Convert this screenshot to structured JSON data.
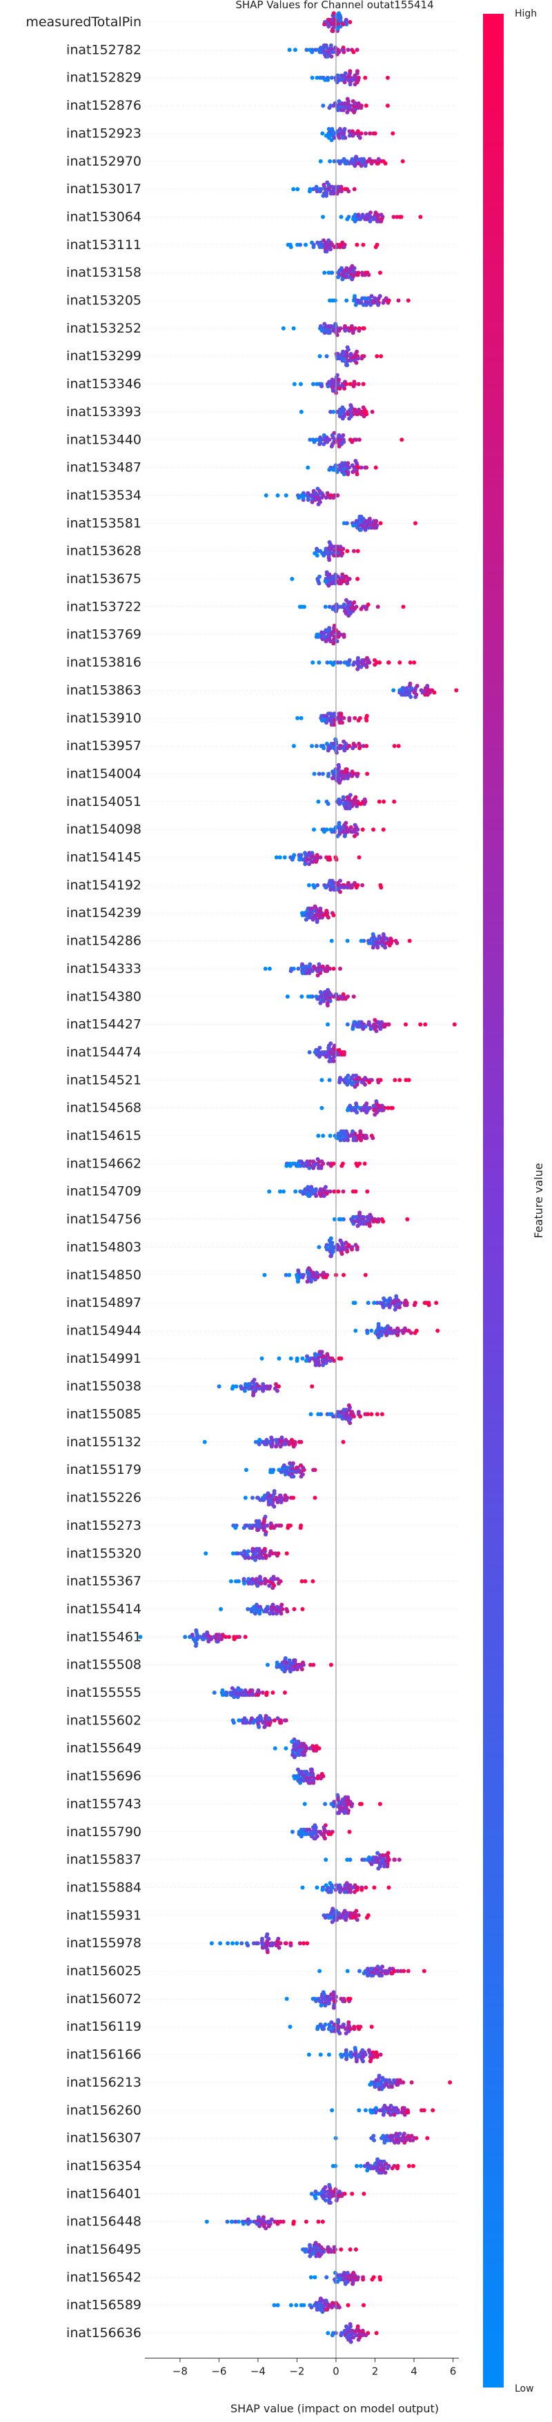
{
  "chart_data": {
    "type": "scatter",
    "subtype": "shap-beeswarm",
    "title": "SHAP Values for Channel outat155414",
    "xlabel": "SHAP value (impact on model output)",
    "xlim": [
      -9.8,
      6.3
    ],
    "xticks": [
      -8,
      -6,
      -4,
      -2,
      0,
      2,
      4,
      6
    ],
    "grid": false,
    "colorbar": {
      "label": "Feature value",
      "high_label": "High",
      "low_label": "Low",
      "low_color": "#008bfb",
      "high_color": "#ff0052"
    },
    "features": [
      {
        "name": "measuredTotalPin",
        "center": 0.0,
        "spread": 0.7,
        "dir": 0
      },
      {
        "name": "inat152782",
        "center": -0.3,
        "spread": 1.2,
        "dir": 1
      },
      {
        "name": "inat152829",
        "center": 0.4,
        "spread": 1.3,
        "dir": 1
      },
      {
        "name": "inat152876",
        "center": 0.5,
        "spread": 1.2,
        "dir": 1
      },
      {
        "name": "inat152923",
        "center": 0.5,
        "spread": 1.3,
        "dir": 1
      },
      {
        "name": "inat152970",
        "center": 1.2,
        "spread": 1.4,
        "dir": 1
      },
      {
        "name": "inat153017",
        "center": -0.3,
        "spread": 1.1,
        "dir": 1
      },
      {
        "name": "inat153064",
        "center": 1.7,
        "spread": 1.3,
        "dir": 1
      },
      {
        "name": "inat153111",
        "center": -0.5,
        "spread": 1.2,
        "dir": 1
      },
      {
        "name": "inat153158",
        "center": 0.6,
        "spread": 1.2,
        "dir": 1
      },
      {
        "name": "inat153205",
        "center": 1.8,
        "spread": 1.2,
        "dir": 1
      },
      {
        "name": "inat153252",
        "center": 0.1,
        "spread": 1.3,
        "dir": 1
      },
      {
        "name": "inat153299",
        "center": 0.5,
        "spread": 1.2,
        "dir": 1
      },
      {
        "name": "inat153346",
        "center": -0.2,
        "spread": 1.2,
        "dir": 1
      },
      {
        "name": "inat153393",
        "center": 0.5,
        "spread": 1.2,
        "dir": 1
      },
      {
        "name": "inat153440",
        "center": -0.1,
        "spread": 1.4,
        "dir": 1
      },
      {
        "name": "inat153487",
        "center": 0.6,
        "spread": 1.0,
        "dir": 1
      },
      {
        "name": "inat153534",
        "center": -1.0,
        "spread": 1.1,
        "dir": 1
      },
      {
        "name": "inat153581",
        "center": 1.6,
        "spread": 1.1,
        "dir": 1
      },
      {
        "name": "inat153628",
        "center": -0.2,
        "spread": 1.0,
        "dir": 1
      },
      {
        "name": "inat153675",
        "center": -0.1,
        "spread": 1.0,
        "dir": 1
      },
      {
        "name": "inat153722",
        "center": 0.7,
        "spread": 1.3,
        "dir": 1
      },
      {
        "name": "inat153769",
        "center": -0.3,
        "spread": 1.0,
        "dir": 1
      },
      {
        "name": "inat153816",
        "center": 1.1,
        "spread": 1.4,
        "dir": 1
      },
      {
        "name": "inat153863",
        "center": 4.0,
        "spread": 1.2,
        "dir": 1
      },
      {
        "name": "inat153910",
        "center": -0.2,
        "spread": 1.0,
        "dir": 1
      },
      {
        "name": "inat153957",
        "center": 0.3,
        "spread": 1.3,
        "dir": 1
      },
      {
        "name": "inat154004",
        "center": 0.1,
        "spread": 1.2,
        "dir": 1
      },
      {
        "name": "inat154051",
        "center": 0.6,
        "spread": 1.1,
        "dir": 1
      },
      {
        "name": "inat154098",
        "center": 0.5,
        "spread": 1.1,
        "dir": 1
      },
      {
        "name": "inat154145",
        "center": -1.3,
        "spread": 1.1,
        "dir": 1
      },
      {
        "name": "inat154192",
        "center": 0.0,
        "spread": 1.2,
        "dir": 1
      },
      {
        "name": "inat154239",
        "center": -1.1,
        "spread": 0.9,
        "dir": 1
      },
      {
        "name": "inat154286",
        "center": 2.3,
        "spread": 1.1,
        "dir": 1
      },
      {
        "name": "inat154333",
        "center": -1.2,
        "spread": 1.3,
        "dir": 1
      },
      {
        "name": "inat154380",
        "center": -0.4,
        "spread": 1.2,
        "dir": 1
      },
      {
        "name": "inat154427",
        "center": 1.7,
        "spread": 1.3,
        "dir": 1
      },
      {
        "name": "inat154474",
        "center": -0.4,
        "spread": 1.0,
        "dir": 1
      },
      {
        "name": "inat154521",
        "center": 1.0,
        "spread": 1.2,
        "dir": 1
      },
      {
        "name": "inat154568",
        "center": 1.6,
        "spread": 1.2,
        "dir": 1
      },
      {
        "name": "inat154615",
        "center": 0.8,
        "spread": 1.0,
        "dir": 1
      },
      {
        "name": "inat154662",
        "center": -1.3,
        "spread": 1.3,
        "dir": 1
      },
      {
        "name": "inat154709",
        "center": -1.0,
        "spread": 1.3,
        "dir": 1
      },
      {
        "name": "inat154756",
        "center": 1.3,
        "spread": 1.2,
        "dir": 1
      },
      {
        "name": "inat154803",
        "center": 0.2,
        "spread": 1.0,
        "dir": 1
      },
      {
        "name": "inat154850",
        "center": -1.2,
        "spread": 1.4,
        "dir": 1
      },
      {
        "name": "inat154897",
        "center": 3.0,
        "spread": 1.1,
        "dir": 1
      },
      {
        "name": "inat154944",
        "center": 2.7,
        "spread": 1.3,
        "dir": 1
      },
      {
        "name": "inat154991",
        "center": -0.8,
        "spread": 1.1,
        "dir": 1
      },
      {
        "name": "inat155038",
        "center": -4.0,
        "spread": 1.5,
        "dir": 1
      },
      {
        "name": "inat155085",
        "center": 0.5,
        "spread": 1.0,
        "dir": 1
      },
      {
        "name": "inat155132",
        "center": -3.0,
        "spread": 1.3,
        "dir": 1
      },
      {
        "name": "inat155179",
        "center": -2.2,
        "spread": 1.0,
        "dir": 1
      },
      {
        "name": "inat155226",
        "center": -3.2,
        "spread": 1.1,
        "dir": 1
      },
      {
        "name": "inat155273",
        "center": -4.0,
        "spread": 1.3,
        "dir": 1
      },
      {
        "name": "inat155320",
        "center": -4.0,
        "spread": 1.3,
        "dir": 1
      },
      {
        "name": "inat155367",
        "center": -4.0,
        "spread": 1.3,
        "dir": 1
      },
      {
        "name": "inat155414",
        "center": -3.5,
        "spread": 1.2,
        "dir": 1
      },
      {
        "name": "inat155461",
        "center": -6.5,
        "spread": 1.6,
        "dir": 1
      },
      {
        "name": "inat155508",
        "center": -2.3,
        "spread": 1.1,
        "dir": 1
      },
      {
        "name": "inat155555",
        "center": -4.8,
        "spread": 1.4,
        "dir": 1
      },
      {
        "name": "inat155602",
        "center": -3.8,
        "spread": 1.5,
        "dir": 1
      },
      {
        "name": "inat155649",
        "center": -1.8,
        "spread": 0.9,
        "dir": 1
      },
      {
        "name": "inat155696",
        "center": -1.3,
        "spread": 1.0,
        "dir": 1
      },
      {
        "name": "inat155743",
        "center": 0.3,
        "spread": 1.0,
        "dir": 1
      },
      {
        "name": "inat155790",
        "center": -1.0,
        "spread": 1.0,
        "dir": 1
      },
      {
        "name": "inat155837",
        "center": 2.2,
        "spread": 1.1,
        "dir": 1
      },
      {
        "name": "inat155884",
        "center": 0.4,
        "spread": 1.1,
        "dir": 1
      },
      {
        "name": "inat155931",
        "center": 0.3,
        "spread": 1.2,
        "dir": 1
      },
      {
        "name": "inat155978",
        "center": -3.8,
        "spread": 1.6,
        "dir": 1
      },
      {
        "name": "inat156025",
        "center": 2.0,
        "spread": 1.5,
        "dir": 1
      },
      {
        "name": "inat156072",
        "center": -0.3,
        "spread": 1.0,
        "dir": 1
      },
      {
        "name": "inat156119",
        "center": 0.1,
        "spread": 1.2,
        "dir": 1
      },
      {
        "name": "inat156166",
        "center": 1.2,
        "spread": 1.1,
        "dir": 1
      },
      {
        "name": "inat156213",
        "center": 2.7,
        "spread": 1.4,
        "dir": 1
      },
      {
        "name": "inat156260",
        "center": 2.8,
        "spread": 1.3,
        "dir": 1
      },
      {
        "name": "inat156307",
        "center": 3.0,
        "spread": 1.4,
        "dir": 1
      },
      {
        "name": "inat156354",
        "center": 2.3,
        "spread": 1.3,
        "dir": 1
      },
      {
        "name": "inat156401",
        "center": -0.3,
        "spread": 1.1,
        "dir": 1
      },
      {
        "name": "inat156448",
        "center": -4.0,
        "spread": 1.6,
        "dir": 1
      },
      {
        "name": "inat156495",
        "center": -0.8,
        "spread": 1.2,
        "dir": 1
      },
      {
        "name": "inat156542",
        "center": 0.5,
        "spread": 1.0,
        "dir": 1
      },
      {
        "name": "inat156589",
        "center": -0.6,
        "spread": 0.9,
        "dir": 1
      },
      {
        "name": "inat156636",
        "center": 0.7,
        "spread": 1.1,
        "dir": 1
      }
    ]
  }
}
